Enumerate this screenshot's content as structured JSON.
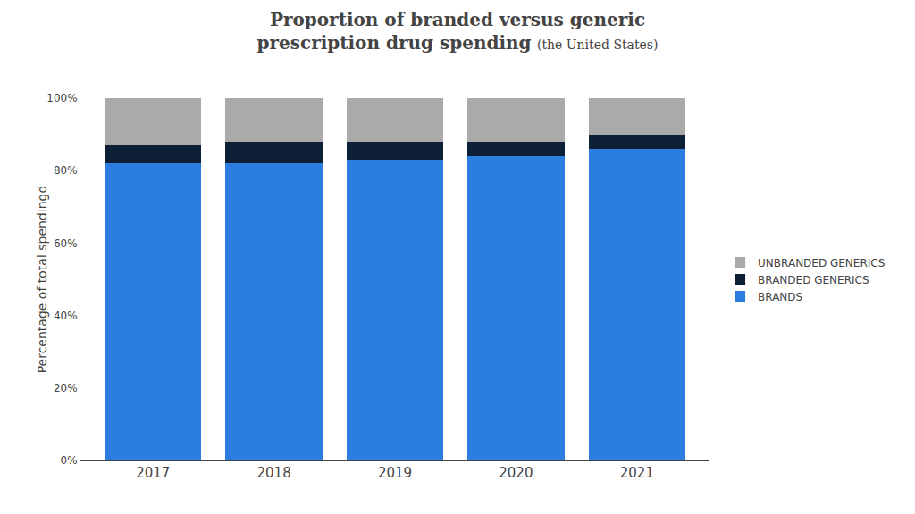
{
  "chart_data": {
    "type": "bar",
    "stacked": true,
    "title": "Proportion of branded versus generic\nprescription drug spending",
    "subtitle": "(the United States)",
    "ylabel": "Percentage of total spendingd",
    "categories": [
      "2017",
      "2018",
      "2019",
      "2020",
      "2021"
    ],
    "series": [
      {
        "name": "BRANDS",
        "color": "#2B7DE0",
        "values": [
          82,
          82,
          83,
          84,
          86
        ]
      },
      {
        "name": "BRANDED GENERICS",
        "color": "#0D1F35",
        "values": [
          5,
          6,
          5,
          4,
          4
        ]
      },
      {
        "name": "UNBRANDED GENERICS",
        "color": "#AAAAAA",
        "values": [
          13,
          12,
          12,
          12,
          10
        ]
      }
    ],
    "ylim": [
      0,
      100
    ],
    "yticks": [
      {
        "value": 0,
        "label": "0%"
      },
      {
        "value": 20,
        "label": "20%"
      },
      {
        "value": 40,
        "label": "40%"
      },
      {
        "value": 60,
        "label": "60%"
      },
      {
        "value": 80,
        "label": "80%"
      },
      {
        "value": 100,
        "label": "100%"
      }
    ],
    "grid": false,
    "legend": "right"
  }
}
